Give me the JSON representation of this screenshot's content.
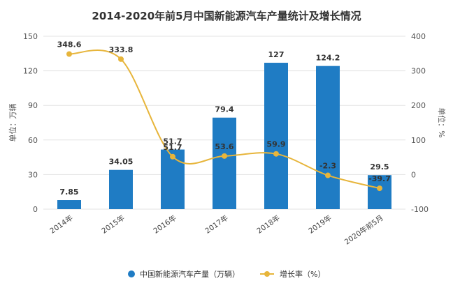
{
  "chart_data": {
    "type": "bar+line",
    "title": "2014-2020年前5月中国新能源汽车产量统计及增长情况",
    "categories": [
      "2014年",
      "2015年",
      "2016年",
      "2017年",
      "2018年",
      "2019年",
      "2020年前5月"
    ],
    "bar_series": {
      "name": "中国新能源汽车产量（万辆）",
      "values": [
        7.85,
        34.05,
        51.7,
        79.4,
        127,
        124.2,
        29.5
      ],
      "labels": [
        "7.85",
        "34.05",
        "51.7",
        "79.4",
        "127",
        "124.2",
        "29.5"
      ],
      "color": "#1f7cc4"
    },
    "line_series": {
      "name": "增长率（%）",
      "values": [
        348.6,
        333.8,
        51.7,
        53.6,
        59.9,
        -2.3,
        -39.7
      ],
      "labels": [
        "348.6",
        "333.8",
        "51.7",
        "53.6",
        "59.9",
        "-2.3",
        "-39.7"
      ],
      "color": "#e7b53b"
    },
    "y_left": {
      "label": "单位：万辆",
      "lim": [
        0,
        150
      ],
      "ticks": [
        0,
        30,
        60,
        90,
        120,
        150
      ],
      "tick_labels": [
        "0",
        "30",
        "60",
        "90",
        "120",
        "150"
      ]
    },
    "y_right": {
      "label": "单位：%",
      "lim": [
        -100,
        400
      ],
      "ticks": [
        -100,
        0,
        100,
        200,
        300,
        400
      ],
      "tick_labels": [
        "-100",
        "0",
        "100",
        "200",
        "300",
        "400"
      ]
    },
    "grid": true,
    "legend_position": "bottom"
  }
}
